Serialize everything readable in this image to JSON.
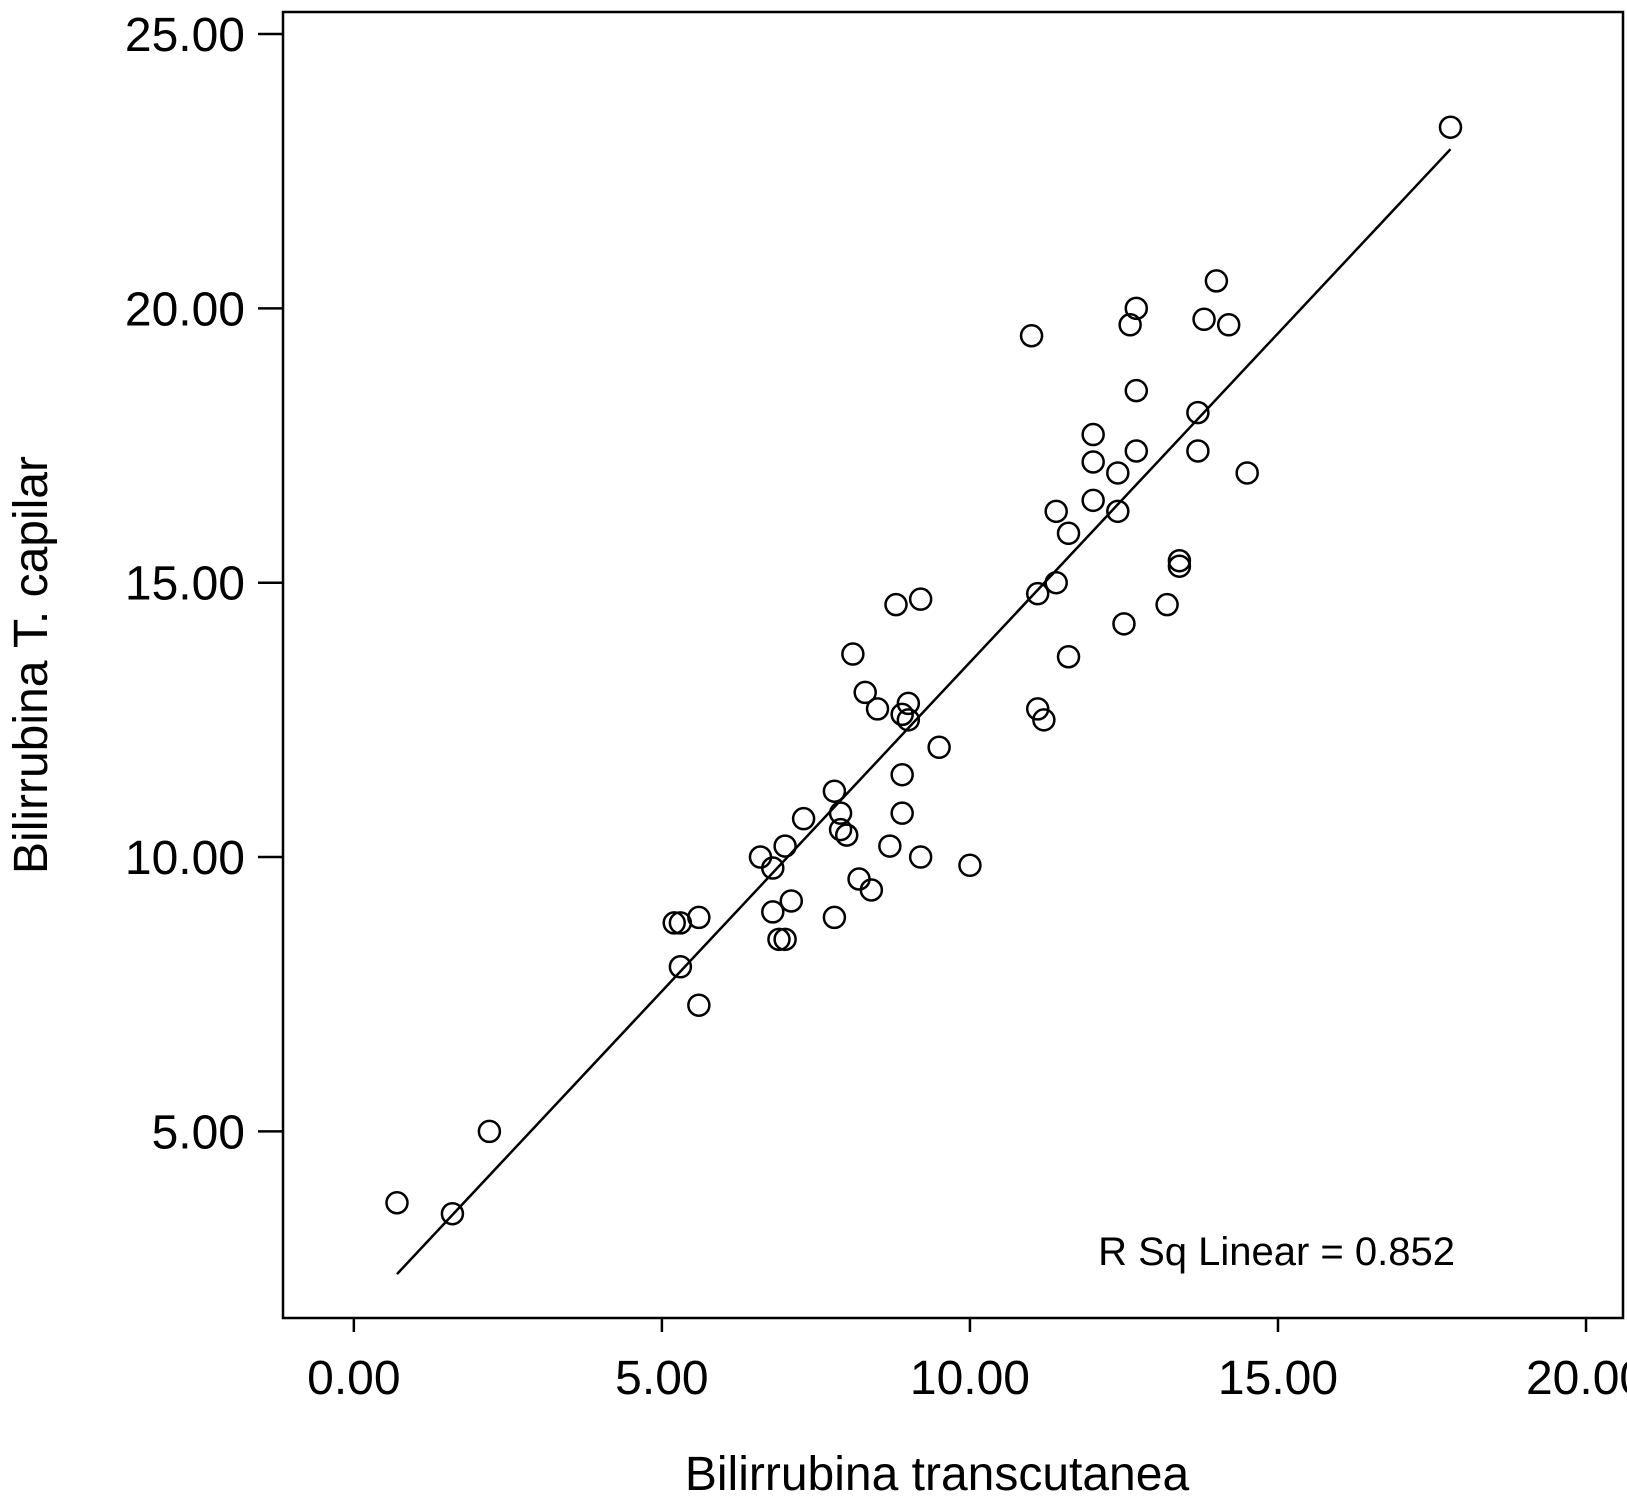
{
  "chart_data": {
    "type": "scatter",
    "title": "",
    "xlabel": "Bilirrubina transcutanea",
    "ylabel": "Bilirrubina T. capilar",
    "xlim": [
      -1.15,
      20.6
    ],
    "ylim": [
      1.6,
      25.4
    ],
    "x_ticks": [
      0,
      5,
      10,
      15,
      20
    ],
    "y_ticks": [
      5,
      10,
      15,
      20,
      25
    ],
    "x_tick_labels": [
      "0.00",
      "5.00",
      "10.00",
      "15.00",
      "20.00"
    ],
    "y_tick_labels": [
      "5.00",
      "10.00",
      "15.00",
      "20.00",
      "25.00"
    ],
    "grid": false,
    "annotation": "R Sq Linear = 0.852",
    "fit_line": {
      "type": "linear",
      "x": [
        0.7,
        17.8
      ],
      "y": [
        2.4,
        22.9
      ]
    },
    "points": [
      [
        0.7,
        3.7
      ],
      [
        1.6,
        3.5
      ],
      [
        2.2,
        5.0
      ],
      [
        5.2,
        8.8
      ],
      [
        5.3,
        8.8
      ],
      [
        5.6,
        8.9
      ],
      [
        5.3,
        8.0
      ],
      [
        5.6,
        7.3
      ],
      [
        6.6,
        10.0
      ],
      [
        6.8,
        9.8
      ],
      [
        6.8,
        9.0
      ],
      [
        7.0,
        10.2
      ],
      [
        7.1,
        9.2
      ],
      [
        6.9,
        8.5
      ],
      [
        7.0,
        8.5
      ],
      [
        7.3,
        10.7
      ],
      [
        7.8,
        11.2
      ],
      [
        7.9,
        10.8
      ],
      [
        7.9,
        10.5
      ],
      [
        8.0,
        10.4
      ],
      [
        7.8,
        8.9
      ],
      [
        8.1,
        13.7
      ],
      [
        8.3,
        13.0
      ],
      [
        8.5,
        12.7
      ],
      [
        8.2,
        9.6
      ],
      [
        8.4,
        9.4
      ],
      [
        8.7,
        10.2
      ],
      [
        8.8,
        14.6
      ],
      [
        9.2,
        14.7
      ],
      [
        8.9,
        12.6
      ],
      [
        9.0,
        12.8
      ],
      [
        9.0,
        12.5
      ],
      [
        8.9,
        11.5
      ],
      [
        8.9,
        10.8
      ],
      [
        9.2,
        10.0
      ],
      [
        9.5,
        12.0
      ],
      [
        10.0,
        9.85
      ],
      [
        11.0,
        19.5
      ],
      [
        11.1,
        14.8
      ],
      [
        11.1,
        12.7
      ],
      [
        11.2,
        12.5
      ],
      [
        11.4,
        16.3
      ],
      [
        11.4,
        15.0
      ],
      [
        11.6,
        15.9
      ],
      [
        11.6,
        13.65
      ],
      [
        12.0,
        17.7
      ],
      [
        12.0,
        17.2
      ],
      [
        12.0,
        16.5
      ],
      [
        12.4,
        17.0
      ],
      [
        12.4,
        16.3
      ],
      [
        12.5,
        14.25
      ],
      [
        12.6,
        19.7
      ],
      [
        12.7,
        20.0
      ],
      [
        12.7,
        18.5
      ],
      [
        12.7,
        17.4
      ],
      [
        13.2,
        14.6
      ],
      [
        13.4,
        15.4
      ],
      [
        13.4,
        15.3
      ],
      [
        13.7,
        18.1
      ],
      [
        13.7,
        17.4
      ],
      [
        13.8,
        19.8
      ],
      [
        14.0,
        20.5
      ],
      [
        14.2,
        19.7
      ],
      [
        14.5,
        17.0
      ],
      [
        17.8,
        23.3
      ]
    ]
  }
}
